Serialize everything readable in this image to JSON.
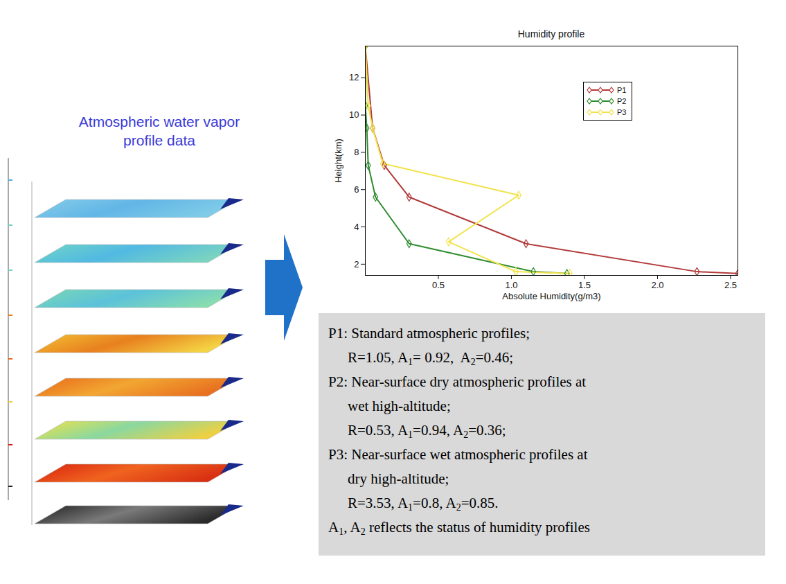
{
  "chart_data": {
    "type": "line",
    "title": "Humidity profile",
    "x_label": "Absolute Humidity(g/m3)",
    "y_label": "Height(km)",
    "xlim": [
      0,
      2.55
    ],
    "ylim": [
      1.4,
      13.7
    ],
    "xticks": [
      0.5,
      {
        "value": 1,
        "label": "1.0"
      },
      1.5,
      {
        "value": 2,
        "label": "2.0"
      },
      2.5
    ],
    "yticks": [
      2,
      4,
      6,
      8,
      10,
      12
    ],
    "grid": false,
    "legend": "top-right",
    "marker": "diamond",
    "series": [
      {
        "name": "P1",
        "color": "#b23a3a",
        "x": [
          2.55,
          2.27,
          1.1,
          0.3,
          0.13,
          0.05,
          0.0
        ],
        "values": [
          1.5,
          1.6,
          3.1,
          5.6,
          7.3,
          9.3,
          13.7
        ]
      },
      {
        "name": "P2",
        "color": "#2e8b2e",
        "x": [
          1.38,
          1.15,
          0.3,
          0.07,
          0.02,
          0.01,
          0.0,
          0.0
        ],
        "values": [
          1.5,
          1.6,
          3.1,
          5.6,
          7.3,
          9.3,
          10.5,
          13.7
        ]
      },
      {
        "name": "P3",
        "color": "#f2e34c",
        "x": [
          1.4,
          1.03,
          0.57,
          1.05,
          0.12,
          0.05,
          0.02,
          0.0
        ],
        "values": [
          1.5,
          1.6,
          3.2,
          5.7,
          7.4,
          9.3,
          10.5,
          13.7
        ]
      }
    ]
  },
  "left_panel": {
    "title_lines": [
      "Atmospheric water vapor",
      "profile data"
    ]
  },
  "info_box": {
    "items": [
      {
        "heading": "P1: Standard atmospheric profiles;",
        "lines": [
          [
            {
              "text": "R=1.05, A"
            },
            {
              "sub": "1"
            },
            {
              "text": "= 0.92,  A"
            },
            {
              "sub": "2"
            },
            {
              "text": "=0.46;"
            }
          ]
        ]
      },
      {
        "heading": "P2: Near-surface dry atmospheric profiles at",
        "lines": [
          [
            {
              "text": "wet high-altitude;"
            }
          ],
          [
            {
              "text": "R=0.53, A"
            },
            {
              "sub": "1"
            },
            {
              "text": "=0.94, A"
            },
            {
              "sub": "2"
            },
            {
              "text": "=0.36;"
            }
          ]
        ]
      },
      {
        "heading": "P3: Near-surface wet atmospheric profiles at",
        "lines": [
          [
            {
              "text": "dry high-altitude;"
            }
          ],
          [
            {
              "text": "R=3.53, A"
            },
            {
              "sub": "1"
            },
            {
              "text": "=0.8, A"
            },
            {
              "sub": "2"
            },
            {
              "text": "=0.85."
            }
          ]
        ]
      }
    ],
    "note": [
      {
        "text": "A"
      },
      {
        "sub": "1"
      },
      {
        "text": ", A"
      },
      {
        "sub": "2"
      },
      {
        "text": " reflects the status of humidity profiles"
      }
    ]
  }
}
